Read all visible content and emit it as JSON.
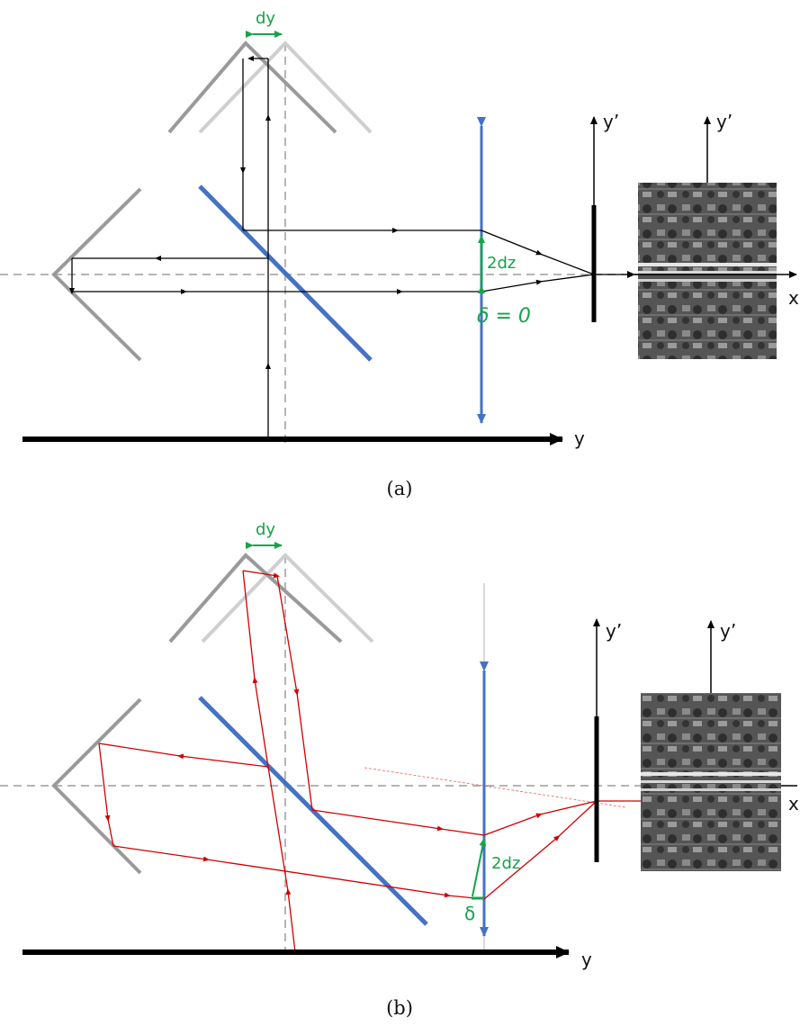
{
  "colors": {
    "mirror": "#9a9a9a",
    "mirror_shifted": "#cfcfcf",
    "beamsplitter": "#4472c4",
    "lens": "#4472c4",
    "ray_a": "#000000",
    "ray_b": "#d00000",
    "annotation": "#16a34a",
    "axis": "#000000",
    "guide": "#b5b5b5"
  },
  "panel_a": {
    "caption": "(a)",
    "dy_label": "dy",
    "dz_label": "2dz",
    "delta_label": "δ = 0",
    "axis_y_label": "y",
    "yprime_label_1": "y’",
    "yprime_label_2": "y’",
    "x_label": "x"
  },
  "panel_b": {
    "caption": "(b)",
    "dy_label": "dy",
    "dz_label": "2dz",
    "delta_label": "δ",
    "axis_y_label": "y",
    "yprime_label_1": "y’",
    "yprime_label_2": "y’",
    "x_label": "x"
  },
  "icons": {
    "scene_image": "aerial-image-icon"
  }
}
